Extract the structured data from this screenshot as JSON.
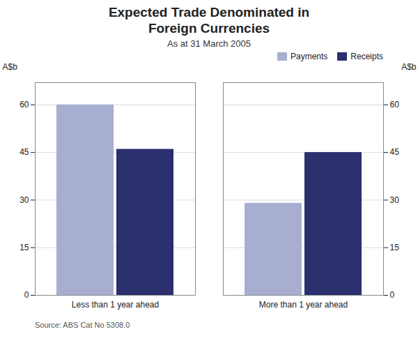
{
  "chart_data": {
    "type": "bar",
    "title": "Expected Trade Denominated in\nForeign Currencies",
    "subtitle": "As at 31 March 2005",
    "source": "Source: ABS Cat No 5308.0",
    "categories": [
      "Less than 1 year ahead",
      "More than 1 year ahead"
    ],
    "series": [
      {
        "name": "Payments",
        "color": "#a8aed0",
        "values": [
          60,
          29
        ]
      },
      {
        "name": "Receipts",
        "color": "#2b2f6e",
        "values": [
          46,
          45
        ]
      }
    ],
    "ylabel": "A$b",
    "y2label": "A$b",
    "ylim": [
      0,
      67
    ],
    "yticks": [
      0,
      15,
      30,
      45,
      60
    ],
    "y2lim": [
      0,
      67
    ],
    "y2ticks": [
      0,
      15,
      30,
      45,
      60
    ],
    "grid": true,
    "legend": "upper right"
  }
}
